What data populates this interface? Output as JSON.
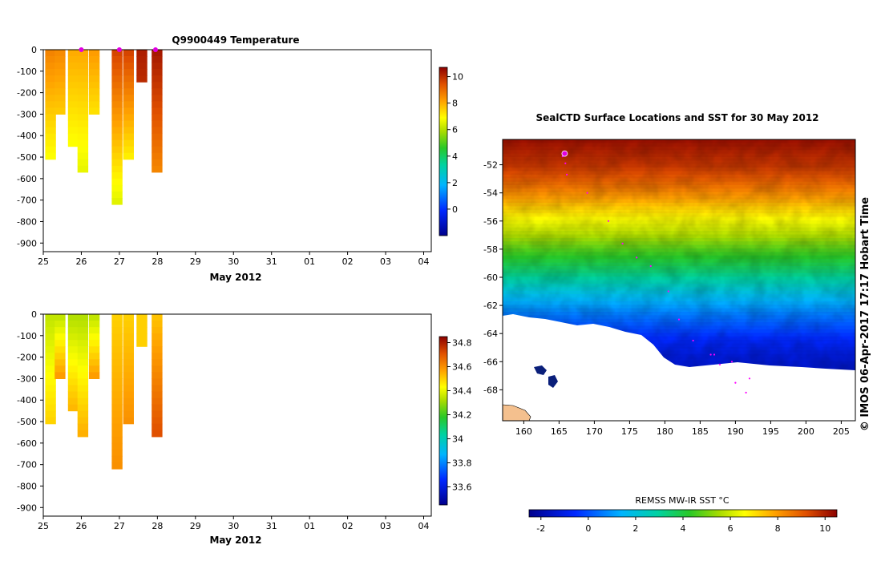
{
  "chart_data": [
    {
      "type": "heatmap",
      "title": "Q9900449  Temperature",
      "xlabel": "May 2012",
      "x_ticks": [
        "25",
        "26",
        "27",
        "28",
        "29",
        "30",
        "31",
        "01",
        "02",
        "03",
        "04"
      ],
      "y_ticks": [
        "0",
        "-100",
        "-200",
        "-300",
        "-400",
        "-500",
        "-600",
        "-700",
        "-800",
        "-900"
      ],
      "ylim": [
        -940,
        0
      ],
      "colorbar": {
        "range": [
          -2,
          10.7
        ],
        "ticks": [
          "10",
          "8",
          "6",
          "4",
          "2",
          "0"
        ]
      },
      "profiles": [
        {
          "day": 25.05,
          "max_depth": 500,
          "surface": 8.6,
          "bottom": 6.8
        },
        {
          "day": 25.3,
          "max_depth": 300,
          "surface": 8.5,
          "bottom": 7.5
        },
        {
          "day": 25.65,
          "max_depth": 450,
          "surface": 8.0,
          "bottom": 6.8
        },
        {
          "day": 25.9,
          "max_depth": 550,
          "surface": 8.0,
          "bottom": 6.6
        },
        {
          "day": 26.2,
          "max_depth": 300,
          "surface": 8.2,
          "bottom": 7.2
        },
        {
          "day": 26.8,
          "max_depth": 700,
          "surface": 9.6,
          "bottom": 6.5
        },
        {
          "day": 27.1,
          "max_depth": 500,
          "surface": 9.6,
          "bottom": 7.0
        },
        {
          "day": 27.45,
          "max_depth": 130,
          "surface": 10.2,
          "bottom": 10.0
        },
        {
          "day": 27.85,
          "max_depth": 570,
          "surface": 10.3,
          "bottom": 8.5
        }
      ],
      "surface_markers": [
        26.0,
        27.0,
        27.95
      ]
    },
    {
      "type": "heatmap",
      "xlabel": "May 2012",
      "x_ticks": [
        "25",
        "26",
        "27",
        "28",
        "29",
        "30",
        "31",
        "01",
        "02",
        "03",
        "04"
      ],
      "y_ticks": [
        "0",
        "-100",
        "-200",
        "-300",
        "-400",
        "-500",
        "-600",
        "-700",
        "-800",
        "-900"
      ],
      "ylim": [
        -940,
        0
      ],
      "colorbar": {
        "range": [
          33.45,
          34.85
        ],
        "ticks": [
          "34.8",
          "34.6",
          "34.4",
          "34.2",
          "34",
          "33.8",
          "33.6"
        ]
      },
      "profiles": [
        {
          "day": 25.05,
          "max_depth": 500,
          "surface": 34.35,
          "bottom": 34.5
        },
        {
          "day": 25.3,
          "max_depth": 300,
          "surface": 34.35,
          "bottom": 34.6
        },
        {
          "day": 25.65,
          "max_depth": 450,
          "surface": 34.33,
          "bottom": 34.55
        },
        {
          "day": 25.9,
          "max_depth": 550,
          "surface": 34.33,
          "bottom": 34.55
        },
        {
          "day": 26.2,
          "max_depth": 300,
          "surface": 34.35,
          "bottom": 34.6
        },
        {
          "day": 26.8,
          "max_depth": 700,
          "surface": 34.5,
          "bottom": 34.6
        },
        {
          "day": 27.1,
          "max_depth": 500,
          "surface": 34.5,
          "bottom": 34.6
        },
        {
          "day": 27.45,
          "max_depth": 130,
          "surface": 34.5,
          "bottom": 34.5
        },
        {
          "day": 27.85,
          "max_depth": 570,
          "surface": 34.52,
          "bottom": 34.72
        }
      ]
    },
    {
      "type": "heatmap",
      "title": "SealCTD Surface Locations and SST for 30 May 2012",
      "x_ticks": [
        "160",
        "165",
        "170",
        "175",
        "180",
        "185",
        "190",
        "195",
        "200",
        "205"
      ],
      "y_ticks": [
        "-52",
        "-54",
        "-56",
        "-58",
        "-60",
        "-62",
        "-64",
        "-66",
        "-68"
      ],
      "xlim": [
        157,
        207
      ],
      "ylim": [
        -70.2,
        -50.2
      ],
      "colorbar_label": "REMSS MW-IR SST °C",
      "colorbar": {
        "range": [
          -2.5,
          10.5
        ],
        "ticks": [
          "-2",
          "0",
          "2",
          "4",
          "6",
          "8",
          "10"
        ]
      },
      "track_points": [
        [
          165.5,
          -51.4
        ],
        [
          165.9,
          -51.9
        ],
        [
          166.1,
          -52.7
        ],
        [
          169.0,
          -54.0
        ],
        [
          172.0,
          -56.0
        ],
        [
          174.0,
          -57.6
        ],
        [
          176.0,
          -58.6
        ],
        [
          178.0,
          -59.2
        ],
        [
          180.5,
          -61.0
        ],
        [
          182.0,
          -63.0
        ],
        [
          184.0,
          -64.5
        ],
        [
          186.5,
          -65.5
        ],
        [
          187.8,
          -66.2
        ],
        [
          190.0,
          -67.5
        ],
        [
          191.5,
          -68.2
        ],
        [
          192.0,
          -67.2
        ],
        [
          189.5,
          -66.0
        ],
        [
          187.0,
          -65.5
        ]
      ],
      "surface_locations": [
        [
          165.8,
          -51.2
        ]
      ]
    }
  ],
  "side_text": "© IMOS 06-Apr-2017 17:17 Hobart Time",
  "colors": {
    "track": "#ff00ff",
    "marker": "#e000e0",
    "land": "#f4c08e"
  }
}
